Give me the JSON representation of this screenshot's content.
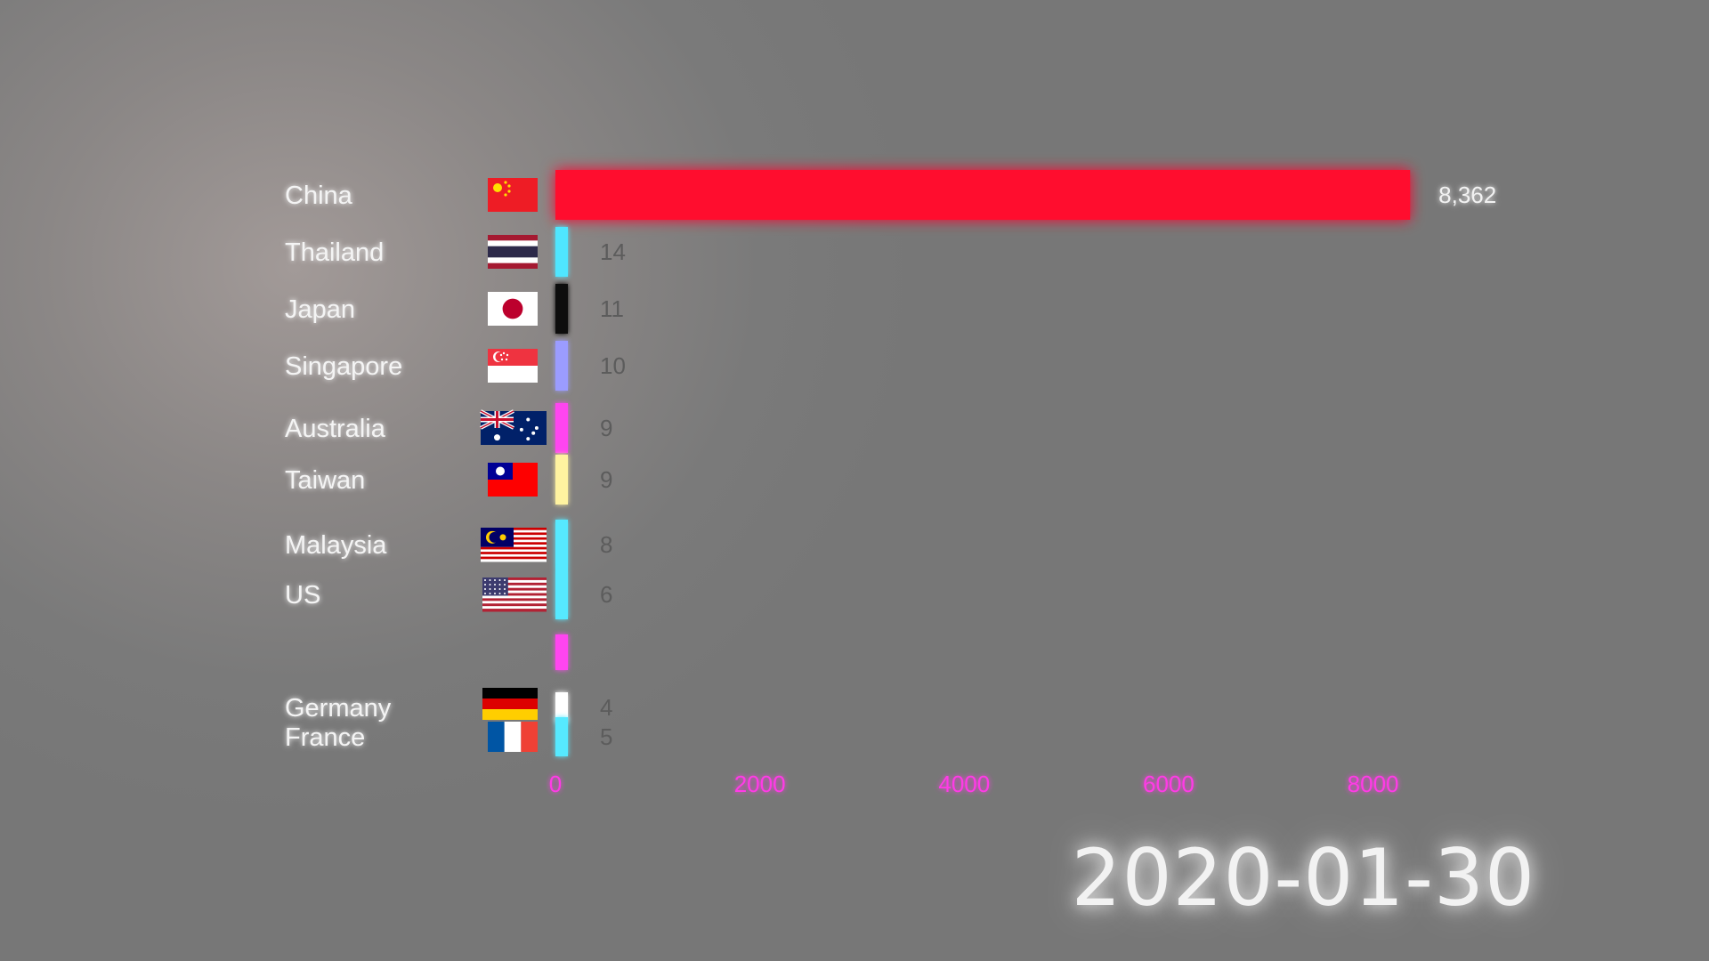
{
  "chart_data": {
    "type": "bar",
    "orientation": "horizontal",
    "title": "",
    "date": "2020-01-30",
    "x_axis": {
      "ticks": [
        0,
        2000,
        4000,
        6000,
        8000
      ],
      "tick_labels": [
        "0",
        "2000",
        "4000",
        "6000",
        "8000"
      ],
      "range": [
        0,
        8500
      ],
      "gridlines": true
    },
    "rows": [
      {
        "name": "China",
        "value": 8362,
        "value_label": "8,362",
        "color": "#ff0f2f",
        "flag": "china-flag"
      },
      {
        "name": "Thailand",
        "value": 14,
        "value_label": "14",
        "color": "#4fe6ff",
        "flag": "thailand-flag"
      },
      {
        "name": "Japan",
        "value": 11,
        "value_label": "11",
        "color": "#111111",
        "flag": "japan-flag"
      },
      {
        "name": "Singapore",
        "value": 10,
        "value_label": "10",
        "color": "#9b9cff",
        "flag": "singapore-flag"
      },
      {
        "name": "Australia",
        "value": 9,
        "value_label": "9",
        "color": "#ff44f0",
        "flag": "australia-flag"
      },
      {
        "name": "Taiwan",
        "value": 9,
        "value_label": "9",
        "color": "#fff3a0",
        "flag": "taiwan-flag"
      },
      {
        "name": "Malaysia",
        "value": 8,
        "value_label": "8",
        "color": "#57e9ff",
        "flag": "malaysia-flag"
      },
      {
        "name": "US",
        "value": 6,
        "value_label": "6",
        "color": "#57e9ff",
        "flag": "us-flag"
      },
      {
        "name": "",
        "value": 5,
        "value_label": "",
        "color": "#ff44f0",
        "flag": ""
      },
      {
        "name": "Germany",
        "value": 4,
        "value_label": "4",
        "color": "#ffffff",
        "flag": "germany-flag"
      },
      {
        "name": "France",
        "value": 5,
        "value_label": "5",
        "color": "#57e9ff",
        "flag": "france-flag"
      }
    ],
    "colors": {
      "axis": "#ff3be6",
      "china": "#ff0f2f"
    }
  }
}
